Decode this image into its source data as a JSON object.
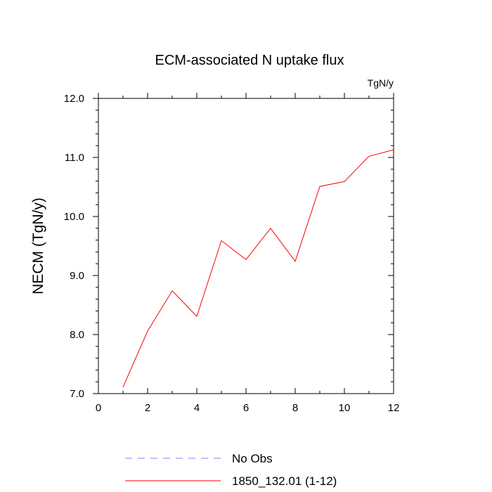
{
  "chart_data": {
    "type": "line",
    "title": "ECM-associated N uptake flux",
    "units_label": "TgN/y",
    "xlabel": "",
    "ylabel": "NECM  (TgN/y)",
    "xlim": [
      0,
      12
    ],
    "ylim": [
      7.0,
      12.0
    ],
    "x_ticks": [
      0,
      2,
      4,
      6,
      8,
      10,
      12
    ],
    "x_tick_labels": [
      "0",
      "2",
      "4",
      "6",
      "8",
      "10",
      "12"
    ],
    "y_ticks": [
      7.0,
      8.0,
      9.0,
      10.0,
      11.0,
      12.0
    ],
    "y_tick_labels": [
      "7.0",
      "8.0",
      "9.0",
      "10.0",
      "11.0",
      "12.0"
    ],
    "grid": false,
    "legend_position": "bottom",
    "series": [
      {
        "name": "1850_132.01 (1-12)",
        "color": "#ff0000",
        "style": "solid",
        "x": [
          1,
          2,
          3,
          4,
          5,
          6,
          7,
          8,
          9,
          10,
          11,
          12
        ],
        "y": [
          7.11,
          8.06,
          8.74,
          8.31,
          9.59,
          9.27,
          9.8,
          9.24,
          10.51,
          10.59,
          11.02,
          11.13
        ]
      }
    ],
    "legend": [
      {
        "label": "No Obs",
        "color": "#8080ff",
        "style": "dashed"
      },
      {
        "label": "1850_132.01 (1-12)",
        "color": "#ff0000",
        "style": "solid"
      }
    ]
  }
}
